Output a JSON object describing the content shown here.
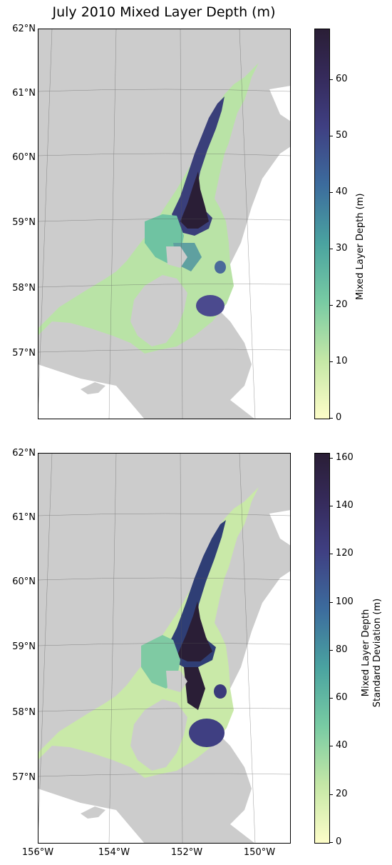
{
  "title": "July 2010 Mixed Layer Depth (m)",
  "lat_labels": [
    "62°N",
    "61°N",
    "60°N",
    "59°N",
    "58°N",
    "57°N"
  ],
  "lon_labels": [
    "156°W",
    "154°W",
    "152°W",
    "150°W"
  ],
  "colors": {
    "land": "#cccccc",
    "ocean": "#ffffff",
    "frame": "#000000",
    "cmap_low": "#fdfdc8",
    "cmap_mid": "#5fbea0",
    "cmap_high": "#2a1e36"
  },
  "panels": [
    {
      "colorbar_label": [
        "Mixed Layer Depth (m)"
      ],
      "colorbar_ticks": [
        "0",
        "10",
        "20",
        "30",
        "40",
        "50",
        "60"
      ],
      "colorbar_max": 69
    },
    {
      "colorbar_label": [
        "Mixed Layer Depth",
        "Standard Deviation (m)"
      ],
      "colorbar_ticks": [
        "0",
        "20",
        "40",
        "60",
        "80",
        "100",
        "120",
        "140",
        "160"
      ],
      "colorbar_max": 162
    }
  ]
}
